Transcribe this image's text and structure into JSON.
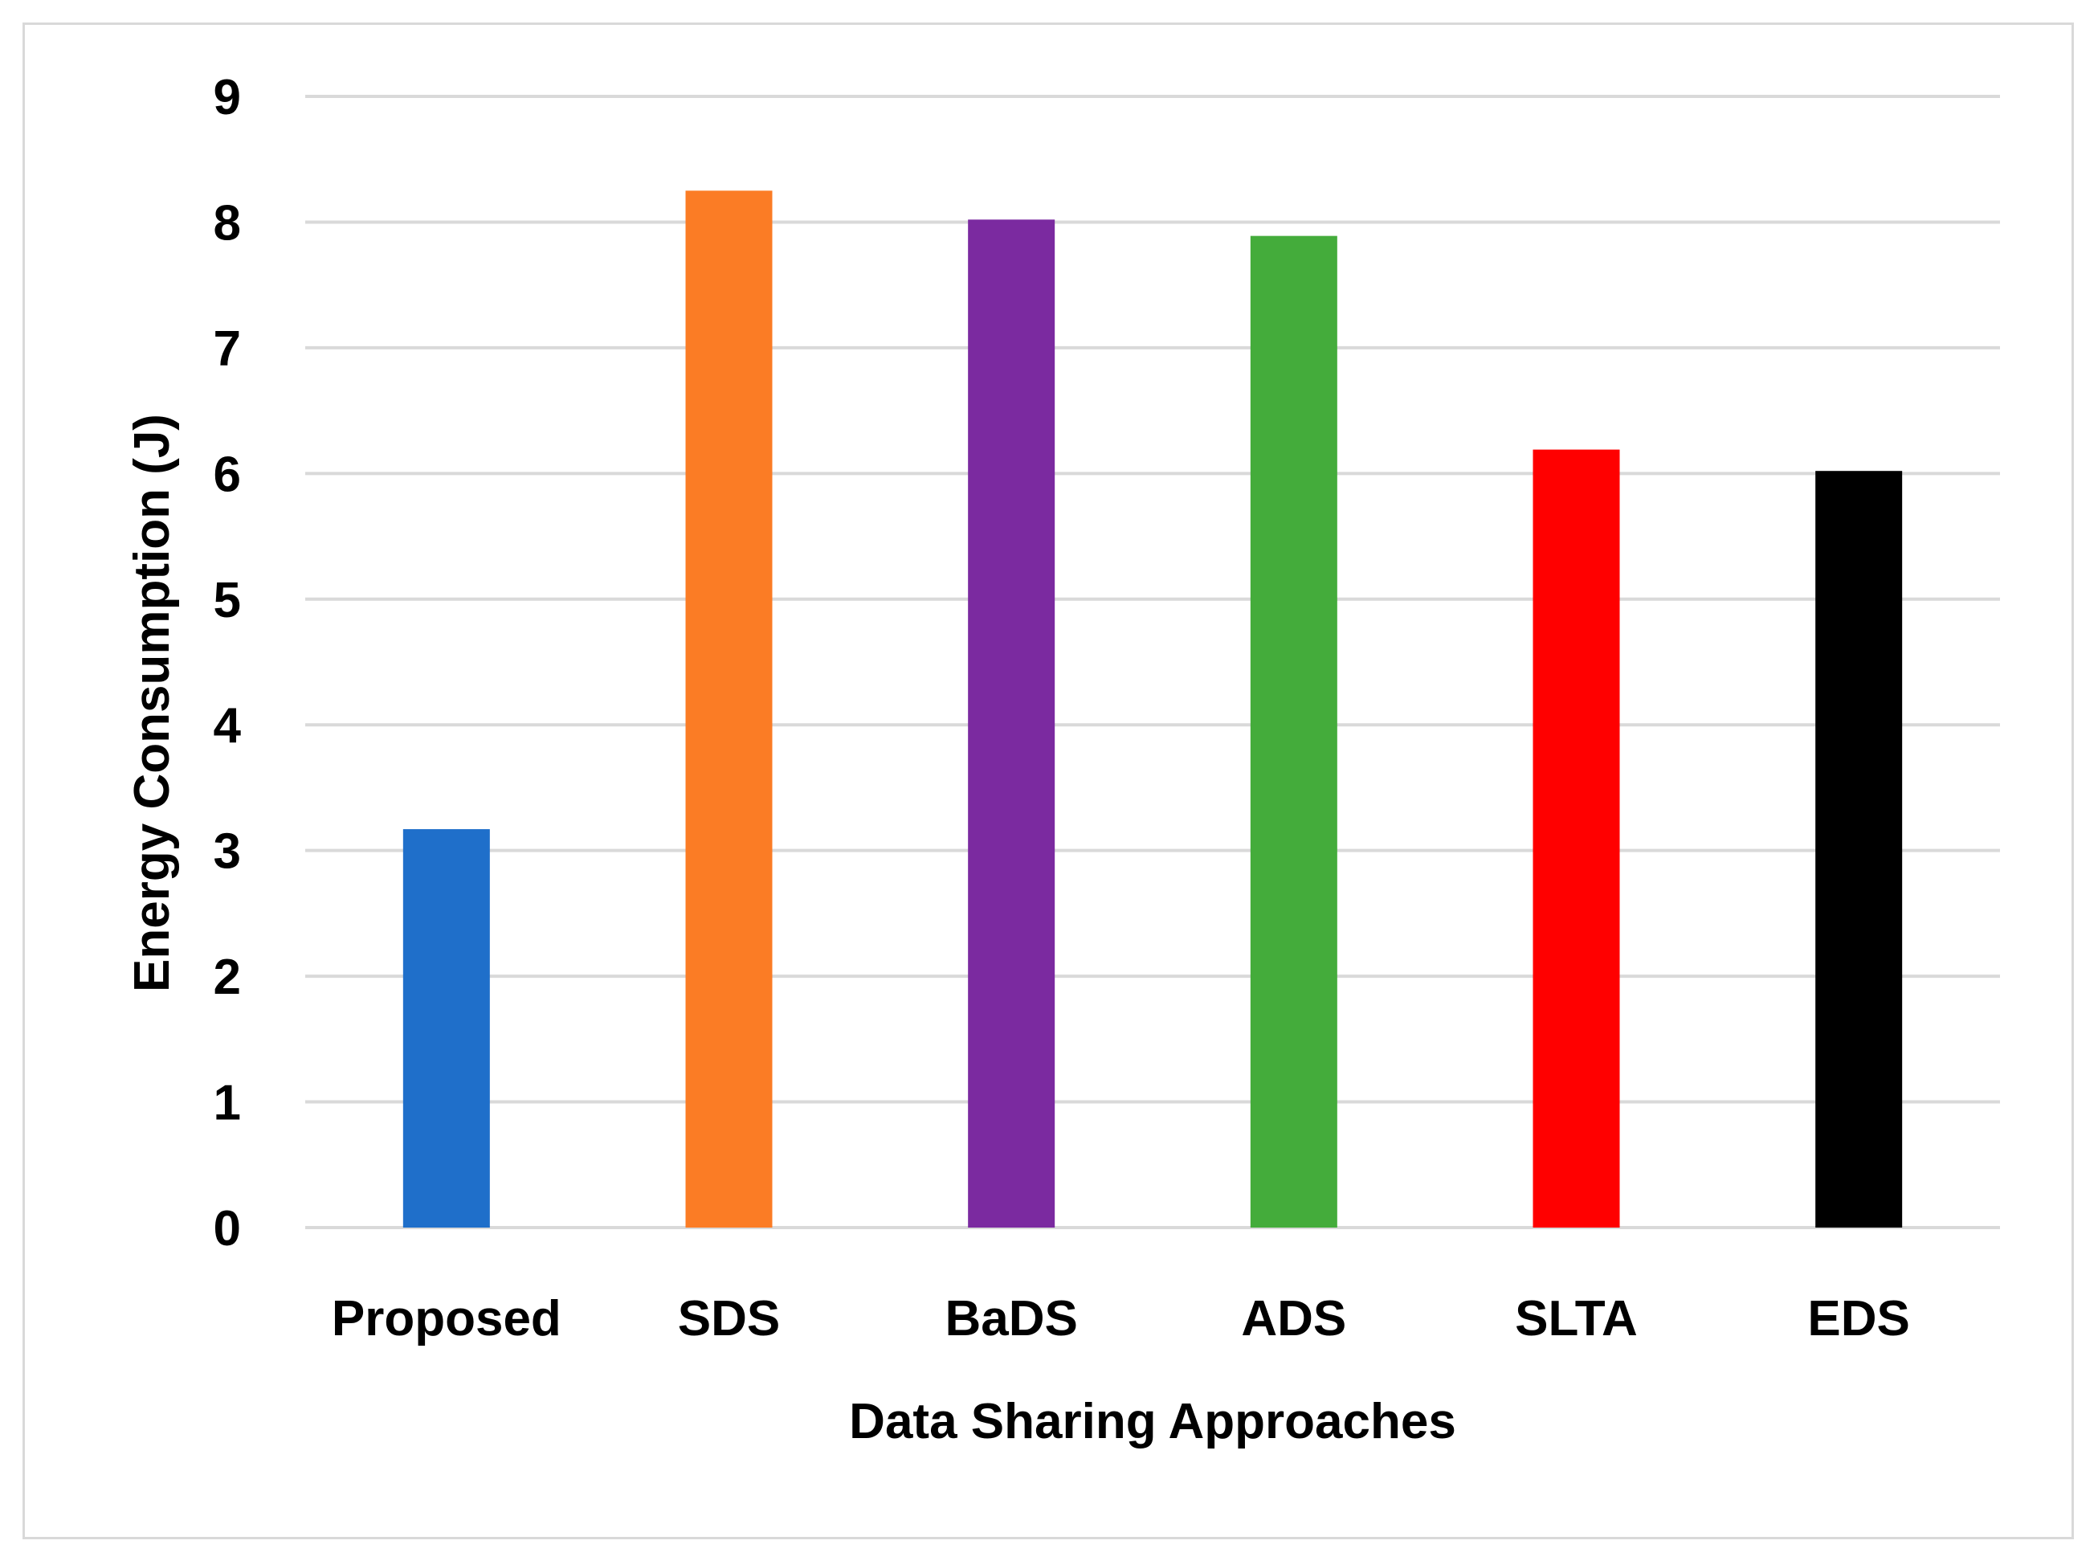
{
  "chart_data": {
    "type": "bar",
    "title": "",
    "xlabel": "Data Sharing Approaches",
    "ylabel": "Energy Consumption (J)",
    "categories": [
      "Proposed",
      "SDS",
      "BaDS",
      "ADS",
      "SLTA",
      "EDS"
    ],
    "values": [
      3.17,
      8.25,
      8.02,
      7.89,
      6.19,
      6.02
    ],
    "colors": [
      "#1f6fca",
      "#fb7c25",
      "#7b2aa0",
      "#44ac3b",
      "#ff0000",
      "#000000"
    ],
    "ylim": [
      0,
      9
    ],
    "yticks": [
      "0",
      "1",
      "2",
      "3",
      "4",
      "5",
      "6",
      "7",
      "8",
      "9"
    ],
    "grid": true,
    "gridline_color": "#d9d9d9",
    "legend": "none"
  }
}
